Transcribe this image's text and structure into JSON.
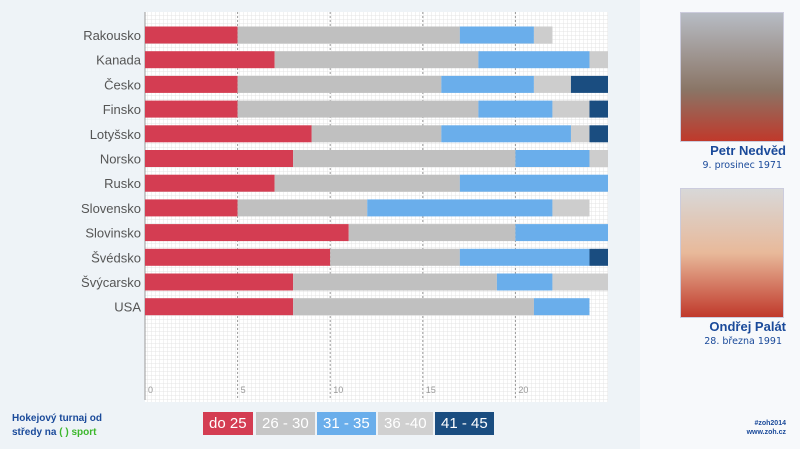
{
  "chart_data": {
    "type": "bar",
    "orientation": "horizontal",
    "stacked": true,
    "categories": [
      "Rakousko",
      "Kanada",
      "Česko",
      "Finsko",
      "Lotyšsko",
      "Norsko",
      "Rusko",
      "Slovensko",
      "Slovinsko",
      "Švédsko",
      "Švýcarsko",
      "USA"
    ],
    "series": [
      {
        "name": "do 25",
        "color": "#d43d52",
        "values": [
          5,
          7,
          5,
          5,
          9,
          8,
          7,
          5,
          11,
          10,
          8,
          8
        ]
      },
      {
        "name": "26 - 30",
        "color": "#c0c0c0",
        "values": [
          12,
          11,
          11,
          13,
          7,
          12,
          10,
          7,
          9,
          7,
          11,
          13
        ]
      },
      {
        "name": "31 - 35",
        "color": "#6aaeeb",
        "values": [
          4,
          6,
          5,
          4,
          7,
          4,
          8,
          10,
          5,
          7,
          3,
          3
        ]
      },
      {
        "name": "36 -40",
        "color": "#cdcdcd",
        "values": [
          1,
          1,
          2,
          2,
          1,
          1,
          0,
          2,
          0,
          0,
          3,
          0
        ]
      },
      {
        "name": "41 - 45",
        "color": "#1a4d80",
        "values": [
          0,
          0,
          2,
          1,
          1,
          0,
          0,
          0,
          0,
          1,
          0,
          0
        ]
      }
    ],
    "xticks": [
      "0",
      "5",
      "10",
      "15",
      "20"
    ],
    "xlim": [
      0,
      25
    ],
    "grid": true,
    "legend": "bottom"
  },
  "players": [
    {
      "name": "Petr Nedvěd",
      "date": "9. prosinec 1971"
    },
    {
      "name": "Ondřej Palát",
      "date": "28. března 1991"
    }
  ],
  "footer": {
    "line1": "Hokejový turnaj od",
    "line2": "středy na",
    "logo": "sport",
    "hashtag": "#zoh2014",
    "url": "www.zoh.cz"
  }
}
